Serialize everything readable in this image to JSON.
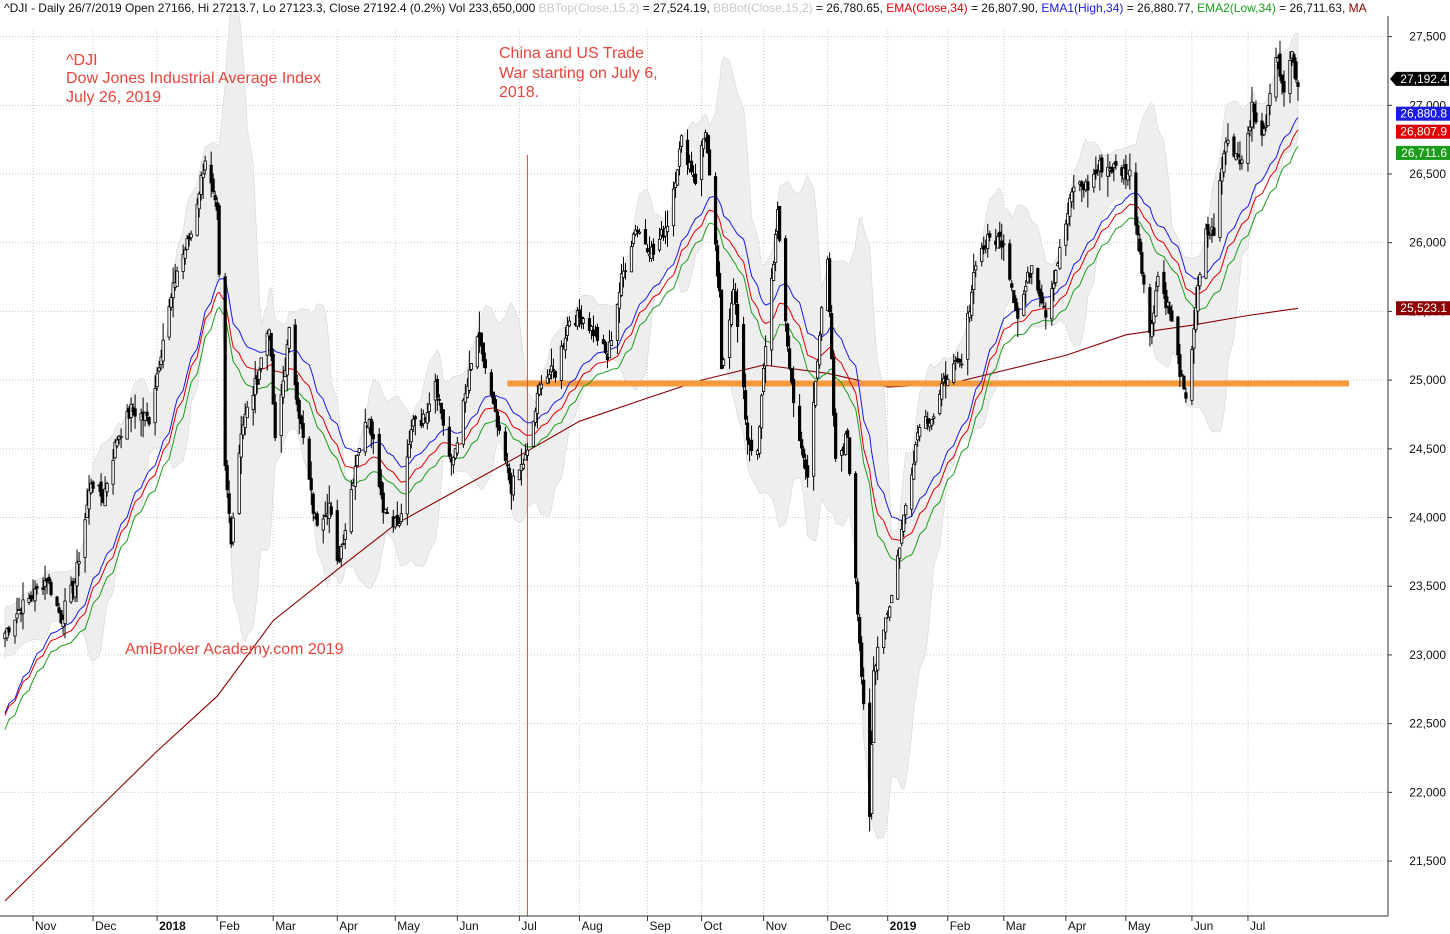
{
  "header": {
    "segments": [
      {
        "text": "^DJI - Daily 26/7/2019 Open 27166, Hi 27213.7, Lo 27123.3, Close 27192.4 (0.2%) Vol 233,650,000 ",
        "color": "#111111"
      },
      {
        "text": "BBTop(Close,15,2)",
        "color": "#c8c8c8"
      },
      {
        "text": " = 27,524.19, ",
        "color": "#111111"
      },
      {
        "text": "BBBot(Close,15,2)",
        "color": "#c8c8c8"
      },
      {
        "text": " = 26,780.65, ",
        "color": "#111111"
      },
      {
        "text": "EMA(Close,34)",
        "color": "#e00000"
      },
      {
        "text": " = 26,807.90, ",
        "color": "#111111"
      },
      {
        "text": "EMA1(High,34)",
        "color": "#1a1ae6"
      },
      {
        "text": " = 26,880.77, ",
        "color": "#111111"
      },
      {
        "text": "EMA2(Low,34)",
        "color": "#1a9e1a"
      },
      {
        "text": " = 26,711.63, ",
        "color": "#111111"
      },
      {
        "text": "MA",
        "color": "#8b0000"
      }
    ]
  },
  "annotations": {
    "title_line1": "^DJI",
    "title_line2": "Dow Jones Industrial Average Index",
    "title_line3": "July 26, 2019",
    "event_line1": "China and US Trade",
    "event_line2": "War starting on July 6,",
    "event_line3": "2018.",
    "watermark": "AmiBroker Academy.com  2019"
  },
  "badges": {
    "last_close": "27,192.4",
    "ema_high": "26,880.8",
    "ema_close": "26,807.9",
    "ema_low": "26,711.6",
    "ma": "25,523.1"
  },
  "colors": {
    "candle": "#000000",
    "bollinger_fill": "#eeeeee",
    "ema_close": "#e00000",
    "ema_high": "#1a1ae6",
    "ema_low": "#1a9e1a",
    "ma": "#8b0000",
    "support": "#f39a3c",
    "event_line": "#e8453c",
    "grid": "#c8c8c8",
    "annotation": "#e8453c"
  },
  "chart_data": {
    "type": "candlestick",
    "title": "^DJI",
    "ylim": [
      21100,
      27650
    ],
    "y_ticks": [
      21500,
      22000,
      22500,
      23000,
      23500,
      24000,
      24500,
      25000,
      25500,
      26000,
      26500,
      27000,
      27500
    ],
    "y_tick_labels": [
      "21,500",
      "22,000",
      "22,500",
      "23,000",
      "23,500",
      "24,000",
      "24,500",
      "25,000",
      "25,500",
      "26,000",
      "26,500",
      "27,000",
      "27,500"
    ],
    "x_range": [
      "2017-10-18",
      "2019-07-26"
    ],
    "x_ticks": [
      {
        "date": "2017-11-01",
        "label": "Nov",
        "bold": false
      },
      {
        "date": "2017-12-01",
        "label": "Dec",
        "bold": false
      },
      {
        "date": "2018-01-02",
        "label": "2018",
        "bold": true
      },
      {
        "date": "2018-02-01",
        "label": "Feb",
        "bold": false
      },
      {
        "date": "2018-03-01",
        "label": "Mar",
        "bold": false
      },
      {
        "date": "2018-04-02",
        "label": "Apr",
        "bold": false
      },
      {
        "date": "2018-05-01",
        "label": "May",
        "bold": false
      },
      {
        "date": "2018-06-01",
        "label": "Jun",
        "bold": false
      },
      {
        "date": "2018-07-02",
        "label": "Jul",
        "bold": false
      },
      {
        "date": "2018-08-01",
        "label": "Aug",
        "bold": false
      },
      {
        "date": "2018-09-04",
        "label": "Sep",
        "bold": false
      },
      {
        "date": "2018-10-01",
        "label": "Oct",
        "bold": false
      },
      {
        "date": "2018-11-01",
        "label": "Nov",
        "bold": false
      },
      {
        "date": "2018-12-03",
        "label": "Dec",
        "bold": false
      },
      {
        "date": "2019-01-02",
        "label": "2019",
        "bold": true
      },
      {
        "date": "2019-02-01",
        "label": "Feb",
        "bold": false
      },
      {
        "date": "2019-03-01",
        "label": "Mar",
        "bold": false
      },
      {
        "date": "2019-04-01",
        "label": "Apr",
        "bold": false
      },
      {
        "date": "2019-05-01",
        "label": "May",
        "bold": false
      },
      {
        "date": "2019-06-03",
        "label": "Jun",
        "bold": false
      },
      {
        "date": "2019-07-01",
        "label": "Jul",
        "bold": false
      }
    ],
    "close_path": [
      [
        "2017-10-18",
        23160
      ],
      [
        "2017-10-25",
        23330
      ],
      [
        "2017-11-01",
        23430
      ],
      [
        "2017-11-08",
        23560
      ],
      [
        "2017-11-15",
        23270
      ],
      [
        "2017-11-22",
        23530
      ],
      [
        "2017-11-30",
        24270
      ],
      [
        "2017-12-06",
        24140
      ],
      [
        "2017-12-13",
        24580
      ],
      [
        "2017-12-20",
        24780
      ],
      [
        "2017-12-29",
        24720
      ],
      [
        "2018-01-05",
        25300
      ],
      [
        "2018-01-12",
        25800
      ],
      [
        "2018-01-19",
        26070
      ],
      [
        "2018-01-26",
        26620
      ],
      [
        "2018-02-01",
        26190
      ],
      [
        "2018-02-05",
        24350
      ],
      [
        "2018-02-08",
        23860
      ],
      [
        "2018-02-13",
        24640
      ],
      [
        "2018-02-20",
        24960
      ],
      [
        "2018-02-27",
        25410
      ],
      [
        "2018-03-02",
        24540
      ],
      [
        "2018-03-09",
        25340
      ],
      [
        "2018-03-14",
        24760
      ],
      [
        "2018-03-22",
        23960
      ],
      [
        "2018-03-29",
        24100
      ],
      [
        "2018-04-02",
        23650
      ],
      [
        "2018-04-06",
        23930
      ],
      [
        "2018-04-12",
        24480
      ],
      [
        "2018-04-18",
        24750
      ],
      [
        "2018-04-25",
        24080
      ],
      [
        "2018-05-03",
        23930
      ],
      [
        "2018-05-10",
        24740
      ],
      [
        "2018-05-15",
        24710
      ],
      [
        "2018-05-21",
        25010
      ],
      [
        "2018-05-29",
        24360
      ],
      [
        "2018-06-04",
        24810
      ],
      [
        "2018-06-11",
        25320
      ],
      [
        "2018-06-15",
        25090
      ],
      [
        "2018-06-22",
        24580
      ],
      [
        "2018-06-28",
        24220
      ],
      [
        "2018-07-06",
        24460
      ],
      [
        "2018-07-13",
        25020
      ],
      [
        "2018-07-20",
        25060
      ],
      [
        "2018-07-27",
        25450
      ],
      [
        "2018-08-03",
        25460
      ],
      [
        "2018-08-10",
        25310
      ],
      [
        "2018-08-15",
        25160
      ],
      [
        "2018-08-22",
        25730
      ],
      [
        "2018-08-29",
        26120
      ],
      [
        "2018-09-07",
        25920
      ],
      [
        "2018-09-14",
        26150
      ],
      [
        "2018-09-21",
        26740
      ],
      [
        "2018-09-28",
        26460
      ],
      [
        "2018-10-03",
        26830
      ],
      [
        "2018-10-05",
        26450
      ],
      [
        "2018-10-10",
        25600
      ],
      [
        "2018-10-11",
        25050
      ],
      [
        "2018-10-17",
        25700
      ],
      [
        "2018-10-24",
        24580
      ],
      [
        "2018-10-29",
        24440
      ],
      [
        "2018-11-02",
        25270
      ],
      [
        "2018-11-08",
        26190
      ],
      [
        "2018-11-14",
        25080
      ],
      [
        "2018-11-20",
        24470
      ],
      [
        "2018-11-23",
        24290
      ],
      [
        "2018-11-30",
        25540
      ],
      [
        "2018-12-03",
        25830
      ],
      [
        "2018-12-07",
        24390
      ],
      [
        "2018-12-13",
        24600
      ],
      [
        "2018-12-17",
        23590
      ],
      [
        "2018-12-20",
        22860
      ],
      [
        "2018-12-24",
        21790
      ],
      [
        "2018-12-26",
        22880
      ],
      [
        "2018-12-28",
        23060
      ],
      [
        "2019-01-04",
        23430
      ],
      [
        "2019-01-10",
        24000
      ],
      [
        "2019-01-18",
        24710
      ],
      [
        "2019-01-25",
        24740
      ],
      [
        "2019-02-01",
        25060
      ],
      [
        "2019-02-08",
        25110
      ],
      [
        "2019-02-15",
        25880
      ],
      [
        "2019-02-22",
        26030
      ],
      [
        "2019-03-01",
        26020
      ],
      [
        "2019-03-08",
        25450
      ],
      [
        "2019-03-15",
        25850
      ],
      [
        "2019-03-22",
        25500
      ],
      [
        "2019-03-29",
        25930
      ],
      [
        "2019-04-05",
        26420
      ],
      [
        "2019-04-12",
        26410
      ],
      [
        "2019-04-18",
        26560
      ],
      [
        "2019-04-26",
        26540
      ],
      [
        "2019-05-03",
        26500
      ],
      [
        "2019-05-08",
        25960
      ],
      [
        "2019-05-13",
        25320
      ],
      [
        "2019-05-17",
        25760
      ],
      [
        "2019-05-23",
        25490
      ],
      [
        "2019-05-31",
        24820
      ],
      [
        "2019-06-05",
        25540
      ],
      [
        "2019-06-10",
        26060
      ],
      [
        "2019-06-14",
        26090
      ],
      [
        "2019-06-20",
        26750
      ],
      [
        "2019-06-28",
        26600
      ],
      [
        "2019-07-03",
        26970
      ],
      [
        "2019-07-09",
        26780
      ],
      [
        "2019-07-15",
        27360
      ],
      [
        "2019-07-19",
        27150
      ],
      [
        "2019-07-23",
        27350
      ],
      [
        "2019-07-26",
        27190
      ]
    ],
    "bollinger_band_width": 720,
    "ema_period": 34,
    "ma_path": [
      [
        "2017-10-18",
        21210
      ],
      [
        "2018-01-02",
        22300
      ],
      [
        "2018-02-01",
        22700
      ],
      [
        "2018-03-01",
        23250
      ],
      [
        "2018-04-02",
        23620
      ],
      [
        "2018-05-01",
        23950
      ],
      [
        "2018-06-01",
        24200
      ],
      [
        "2018-07-02",
        24450
      ],
      [
        "2018-08-01",
        24700
      ],
      [
        "2018-09-04",
        24870
      ],
      [
        "2018-10-01",
        25000
      ],
      [
        "2018-11-01",
        25110
      ],
      [
        "2018-12-03",
        25050
      ],
      [
        "2019-01-02",
        24950
      ],
      [
        "2019-02-01",
        24970
      ],
      [
        "2019-03-01",
        25070
      ],
      [
        "2019-04-01",
        25180
      ],
      [
        "2019-05-01",
        25330
      ],
      [
        "2019-06-03",
        25400
      ],
      [
        "2019-07-01",
        25470
      ],
      [
        "2019-07-26",
        25523
      ]
    ],
    "support_level": {
      "value": 24975,
      "start": "2018-06-28",
      "end": "2019-07-26"
    },
    "event_marker": {
      "date": "2018-07-06",
      "top": 26640
    },
    "last_values": {
      "close": 27192.4,
      "ema_high": 26880.8,
      "ema_close": 26807.9,
      "ema_low": 26711.6,
      "ma": 25523.1
    },
    "legend": [
      {
        "name": "BBTop(Close,15,2)",
        "value": "27,524.19"
      },
      {
        "name": "BBBot(Close,15,2)",
        "value": "26,780.65"
      },
      {
        "name": "EMA(Close,34)",
        "value": "26,807.90"
      },
      {
        "name": "EMA1(High,34)",
        "value": "26,880.77"
      },
      {
        "name": "EMA2(Low,34)",
        "value": "26,711.63"
      },
      {
        "name": "MA",
        "value": ""
      }
    ]
  }
}
